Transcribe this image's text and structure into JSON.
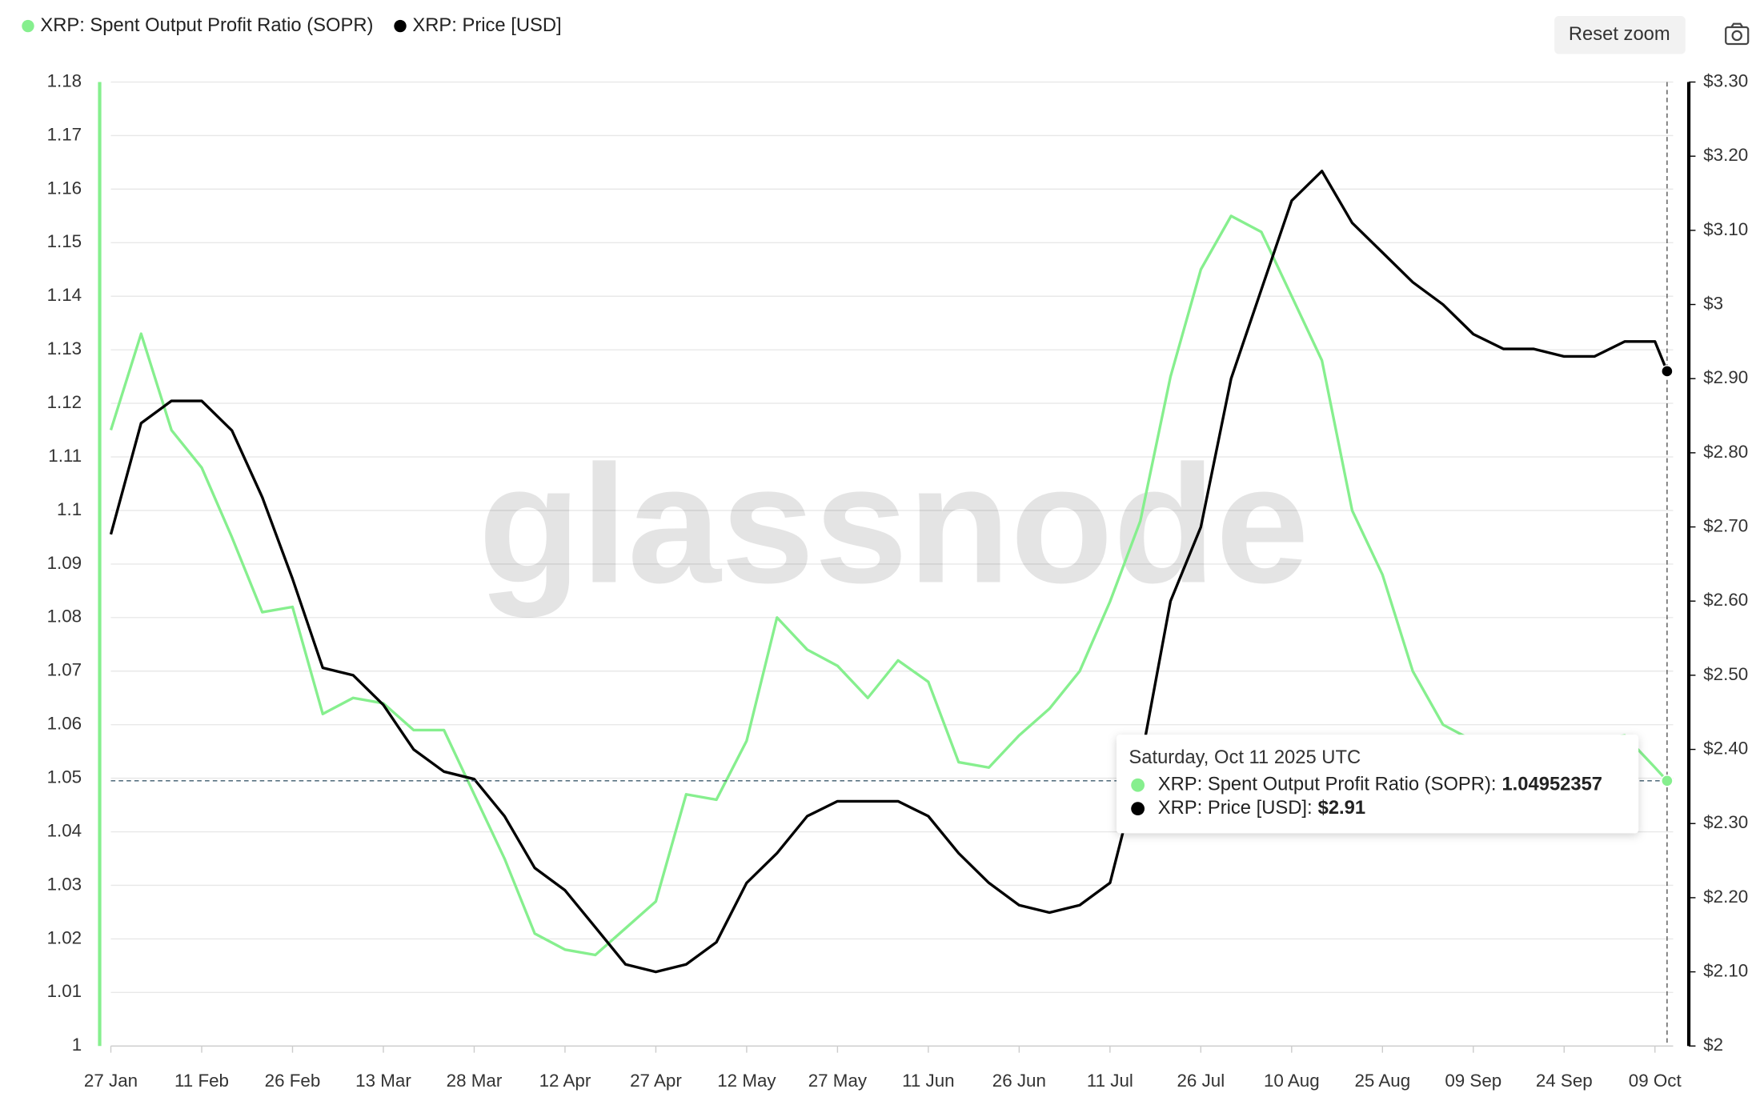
{
  "chart_data": {
    "type": "line",
    "watermark": "glassnode",
    "button": "Reset zoom",
    "x": [
      "2025-01-27",
      "2025-02-01",
      "2025-02-06",
      "2025-02-11",
      "2025-02-16",
      "2025-02-21",
      "2025-02-26",
      "2025-03-03",
      "2025-03-08",
      "2025-03-13",
      "2025-03-18",
      "2025-03-23",
      "2025-03-28",
      "2025-04-02",
      "2025-04-07",
      "2025-04-12",
      "2025-04-17",
      "2025-04-22",
      "2025-04-27",
      "2025-05-02",
      "2025-05-07",
      "2025-05-12",
      "2025-05-17",
      "2025-05-22",
      "2025-05-27",
      "2025-06-01",
      "2025-06-06",
      "2025-06-11",
      "2025-06-16",
      "2025-06-21",
      "2025-06-26",
      "2025-07-01",
      "2025-07-06",
      "2025-07-11",
      "2025-07-16",
      "2025-07-21",
      "2025-07-26",
      "2025-07-31",
      "2025-08-05",
      "2025-08-10",
      "2025-08-15",
      "2025-08-20",
      "2025-08-25",
      "2025-08-30",
      "2025-09-04",
      "2025-09-09",
      "2025-09-14",
      "2025-09-19",
      "2025-09-24",
      "2025-09-29",
      "2025-10-04",
      "2025-10-09",
      "2025-10-11"
    ],
    "xlim": [
      "2025-01-27",
      "2025-10-12"
    ],
    "xticks": [
      {
        "value": "2025-01-27",
        "label": "27 Jan"
      },
      {
        "value": "2025-02-11",
        "label": "11 Feb"
      },
      {
        "value": "2025-02-26",
        "label": "26 Feb"
      },
      {
        "value": "2025-03-13",
        "label": "13 Mar"
      },
      {
        "value": "2025-03-28",
        "label": "28 Mar"
      },
      {
        "value": "2025-04-12",
        "label": "12 Apr"
      },
      {
        "value": "2025-04-27",
        "label": "27 Apr"
      },
      {
        "value": "2025-05-12",
        "label": "12 May"
      },
      {
        "value": "2025-05-27",
        "label": "27 May"
      },
      {
        "value": "2025-06-11",
        "label": "11 Jun"
      },
      {
        "value": "2025-06-26",
        "label": "26 Jun"
      },
      {
        "value": "2025-07-11",
        "label": "11 Jul"
      },
      {
        "value": "2025-07-26",
        "label": "26 Jul"
      },
      {
        "value": "2025-08-10",
        "label": "10 Aug"
      },
      {
        "value": "2025-08-25",
        "label": "25 Aug"
      },
      {
        "value": "2025-09-09",
        "label": "09 Sep"
      },
      {
        "value": "2025-09-24",
        "label": "24 Sep"
      },
      {
        "value": "2025-10-09",
        "label": "09 Oct"
      }
    ],
    "ylim": [
      1,
      1.18
    ],
    "yticks": [
      1,
      1.01,
      1.02,
      1.03,
      1.04,
      1.05,
      1.06,
      1.07,
      1.08,
      1.09,
      1.1,
      1.11,
      1.12,
      1.13,
      1.14,
      1.15,
      1.16,
      1.17,
      1.18
    ],
    "y2lim": [
      2,
      3.3
    ],
    "y2ticks": [
      {
        "value": 2,
        "label": "$2"
      },
      {
        "value": 2.1,
        "label": "$2.10"
      },
      {
        "value": 2.2,
        "label": "$2.20"
      },
      {
        "value": 2.3,
        "label": "$2.30"
      },
      {
        "value": 2.4,
        "label": "$2.40"
      },
      {
        "value": 2.5,
        "label": "$2.50"
      },
      {
        "value": 2.6,
        "label": "$2.60"
      },
      {
        "value": 2.7,
        "label": "$2.70"
      },
      {
        "value": 2.8,
        "label": "$2.80"
      },
      {
        "value": 2.9,
        "label": "$2.90"
      },
      {
        "value": 3,
        "label": "$3"
      },
      {
        "value": 3.1,
        "label": "$3.10"
      },
      {
        "value": 3.2,
        "label": "$3.20"
      },
      {
        "value": 3.3,
        "label": "$3.30"
      }
    ],
    "grid": true,
    "series": [
      {
        "name": "XRP: Spent Output Profit Ratio (SOPR)",
        "color": "#86ef8e",
        "values": [
          1.115,
          1.133,
          1.115,
          1.108,
          1.095,
          1.081,
          1.082,
          1.062,
          1.065,
          1.064,
          1.059,
          1.059,
          1.047,
          1.035,
          1.021,
          1.018,
          1.017,
          1.022,
          1.027,
          1.047,
          1.046,
          1.057,
          1.08,
          1.074,
          1.071,
          1.065,
          1.072,
          1.068,
          1.053,
          1.052,
          1.058,
          1.063,
          1.07,
          1.083,
          1.098,
          1.125,
          1.145,
          1.155,
          1.152,
          1.14,
          1.128,
          1.1,
          1.088,
          1.07,
          1.06,
          1.057,
          1.056,
          1.056,
          1.057,
          1.057,
          1.058,
          1.052,
          1.04952357
        ]
      },
      {
        "name": "XRP: Price [USD]",
        "color": "#000000",
        "axis": "y2",
        "values": [
          2.69,
          2.84,
          2.87,
          2.87,
          2.83,
          2.74,
          2.63,
          2.51,
          2.5,
          2.46,
          2.4,
          2.37,
          2.36,
          2.31,
          2.24,
          2.21,
          2.16,
          2.11,
          2.1,
          2.11,
          2.14,
          2.22,
          2.26,
          2.31,
          2.33,
          2.33,
          2.33,
          2.31,
          2.26,
          2.22,
          2.19,
          2.18,
          2.19,
          2.22,
          2.38,
          2.6,
          2.7,
          2.9,
          3.02,
          3.14,
          3.18,
          3.11,
          3.07,
          3.03,
          3.0,
          2.96,
          2.94,
          2.94,
          2.93,
          2.93,
          2.95,
          2.95,
          2.91
        ]
      }
    ],
    "tooltip": {
      "title": "Saturday, Oct 11 2025 UTC",
      "rows": [
        {
          "label": "XRP: Spent Output Profit Ratio (SOPR):",
          "value": "1.04952357"
        },
        {
          "label": "XRP: Price [USD]:",
          "value": "$2.91"
        }
      ]
    }
  }
}
